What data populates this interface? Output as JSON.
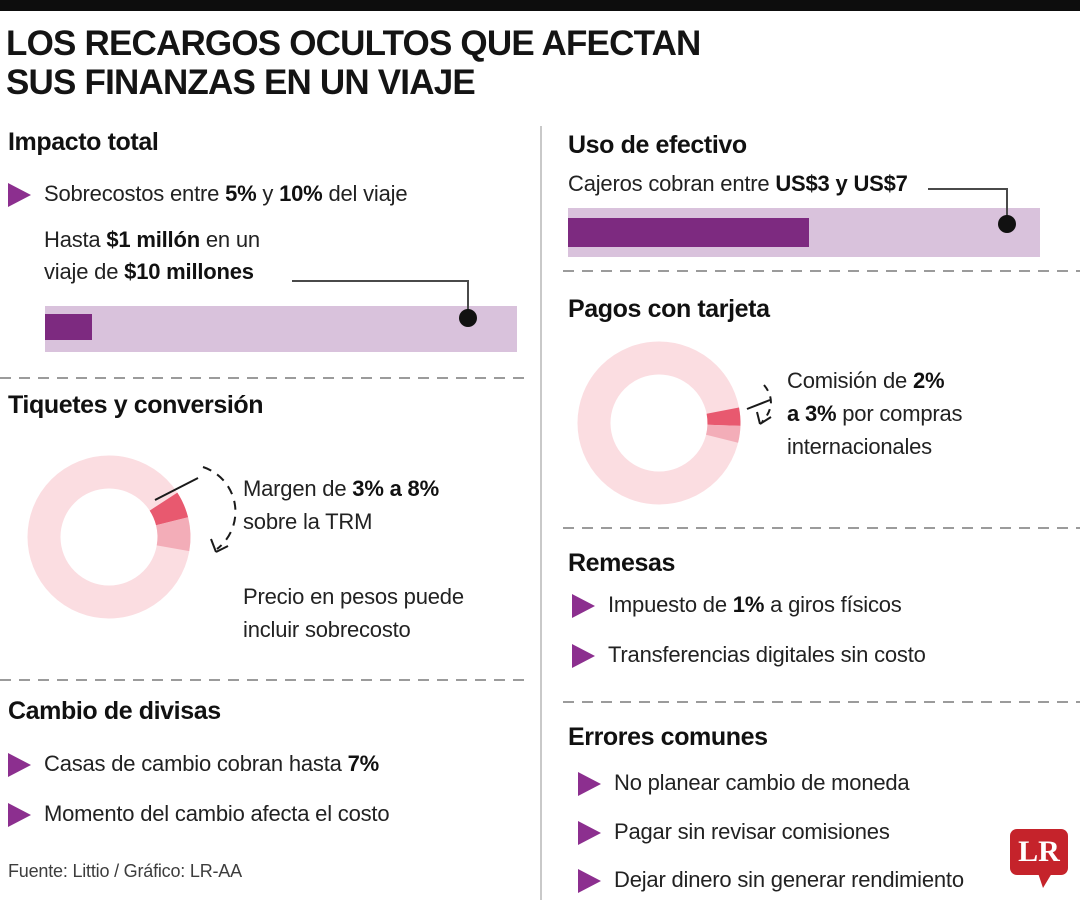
{
  "header": {
    "title_line1": "LOS RECARGOS OCULTOS QUE AFECTAN",
    "title_line2": "SUS FINANZAS EN UN VIAJE"
  },
  "colors": {
    "purple_dark": "#7d2a80",
    "purple_light": "#d9c2dc",
    "bullet_purple": "#8c2f8f",
    "red_segment": "#e8596f",
    "pink_segment": "#f3adb8",
    "ring_light": "#fbdde1",
    "logo_red": "#c5232b"
  },
  "left": {
    "impacto": {
      "heading": "Impacto total",
      "bullet": [
        {
          "t": "Sobrecostos entre ",
          "b": false
        },
        {
          "t": "5%",
          "b": true
        },
        {
          "t": " y ",
          "b": false
        },
        {
          "t": "10%",
          "b": true
        },
        {
          "t": " del viaje",
          "b": false
        }
      ],
      "note_line1": [
        {
          "t": "Hasta ",
          "b": false
        },
        {
          "t": "$1 millón",
          "b": true
        },
        {
          "t": " en un",
          "b": false
        }
      ],
      "note_line2": [
        {
          "t": "viaje de ",
          "b": false
        },
        {
          "t": "$10 millones",
          "b": true
        }
      ]
    },
    "tiquetes": {
      "heading": "Tiquetes y conversión",
      "margen_line1": [
        {
          "t": "Margen de ",
          "b": false
        },
        {
          "t": "3% a 8%",
          "b": true
        }
      ],
      "margen_line2": [
        {
          "t": "sobre la TRM",
          "b": false
        }
      ],
      "precio_line1": [
        {
          "t": "Precio en pesos puede",
          "b": false
        }
      ],
      "precio_line2": [
        {
          "t": "incluir sobrecosto",
          "b": false
        }
      ]
    },
    "cambio": {
      "heading": "Cambio de divisas",
      "bullet1": [
        {
          "t": "Casas de cambio cobran hasta ",
          "b": false
        },
        {
          "t": "7%",
          "b": true
        }
      ],
      "bullet2": [
        {
          "t": "Momento del cambio afecta el costo",
          "b": false
        }
      ]
    }
  },
  "right": {
    "efectivo": {
      "heading": "Uso de efectivo",
      "sub": [
        {
          "t": "Cajeros cobran entre ",
          "b": false
        },
        {
          "t": "US$3 y US$7",
          "b": true
        }
      ]
    },
    "tarjeta": {
      "heading": "Pagos con tarjeta",
      "line1": [
        {
          "t": "Comisión de ",
          "b": false
        },
        {
          "t": "2%",
          "b": true
        }
      ],
      "line2": [
        {
          "t": "a 3%",
          "b": true
        },
        {
          "t": " por compras",
          "b": false
        }
      ],
      "line3": [
        {
          "t": "internacionales",
          "b": false
        }
      ]
    },
    "remesas": {
      "heading": "Remesas",
      "bullet1": [
        {
          "t": "Impuesto de ",
          "b": false
        },
        {
          "t": "1%",
          "b": true
        },
        {
          "t": " a giros físicos",
          "b": false
        }
      ],
      "bullet2": [
        {
          "t": "Transferencias digitales sin costo",
          "b": false
        }
      ]
    },
    "errores": {
      "heading": "Errores comunes",
      "bullet1": [
        {
          "t": "No planear cambio de moneda",
          "b": false
        }
      ],
      "bullet2": [
        {
          "t": "Pagar sin revisar comisiones",
          "b": false
        }
      ],
      "bullet3": [
        {
          "t": "Dejar dinero sin generar rendimiento",
          "b": false
        }
      ]
    }
  },
  "footer": {
    "source": "Fuente: Littio / Gráfico: LR-AA",
    "logo_text": "LR"
  },
  "chart_data": [
    {
      "type": "bar",
      "title": "Impacto total",
      "note": "Sobrecostos entre 5% y 10% del viaje",
      "annotation": "Hasta $1 millón en un viaje de $10 millones",
      "value": 10,
      "track": {
        "min": 0,
        "max": 100,
        "color": "#d9c2dc"
      },
      "bar_color": "#7d2a80"
    },
    {
      "type": "donut",
      "title": "Tiquetes y conversión",
      "annotation": "Margen de 3% a 8% sobre la TRM",
      "ring_color": "#fbdde1",
      "segments": [
        {
          "label": "margen mínimo 3%",
          "value_pct": 3,
          "from_deg": 57,
          "to_deg": 76,
          "color": "#e8596f"
        },
        {
          "label": "margen máximo 8%",
          "value_pct": 8,
          "from_deg": 76,
          "to_deg": 100,
          "color": "#f3adb8"
        }
      ]
    },
    {
      "type": "bar",
      "title": "Uso de efectivo",
      "annotation": "Cajeros cobran entre US$3 y US$7",
      "value": 51,
      "track": {
        "min": 0,
        "max": 100,
        "color": "#d9c2dc"
      },
      "bar_color": "#7d2a80"
    },
    {
      "type": "donut",
      "title": "Pagos con tarjeta",
      "annotation": "Comisión de 2% a 3% por compras internacionales",
      "ring_color": "#fbdde1",
      "segments": [
        {
          "label": "comisión mínima 2%",
          "value_pct": 2,
          "from_deg": 79,
          "to_deg": 92,
          "color": "#e8596f"
        },
        {
          "label": "comisión máxima 3%",
          "value_pct": 3,
          "from_deg": 92,
          "to_deg": 104,
          "color": "#f3adb8"
        }
      ]
    }
  ]
}
